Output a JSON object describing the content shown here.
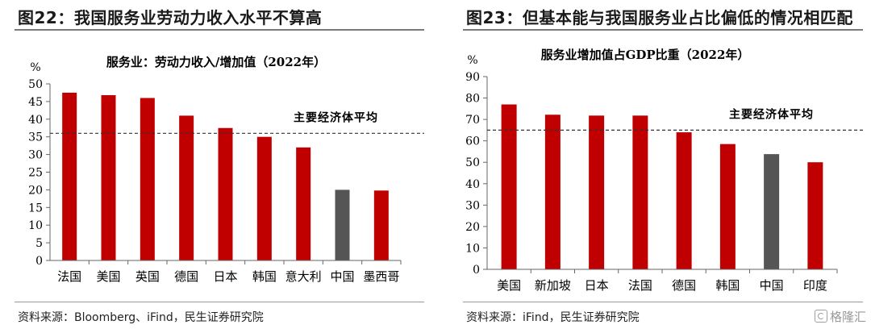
{
  "left": {
    "fig_title": "图22：我国服务业劳动力收入水平不算高",
    "source": "资料来源：Bloomberg、iFind，民生证券研究院",
    "chart_data": {
      "type": "bar",
      "title": "服务业：劳动力收入/增加值（2022年）",
      "unit_label": "%",
      "categories": [
        "法国",
        "美国",
        "英国",
        "德国",
        "日本",
        "韩国",
        "意大利",
        "中国",
        "墨西哥"
      ],
      "values": [
        47.5,
        46.8,
        46.0,
        41.0,
        37.5,
        35.0,
        32.0,
        20.0,
        19.8
      ],
      "ylim": [
        0,
        50
      ],
      "ytick_step": 5,
      "colors": [
        "#c00000",
        "#c00000",
        "#c00000",
        "#c00000",
        "#c00000",
        "#c00000",
        "#c00000",
        "#555555",
        "#c00000"
      ],
      "reference_line": {
        "value": 36,
        "label": "主要经济体平均"
      },
      "grid": false
    }
  },
  "right": {
    "fig_title": "图23：但基本能与我国服务业占比偏低的情况相匹配",
    "source": "资料来源：iFind，民生证券研究院",
    "watermark": "格隆汇",
    "chart_data": {
      "type": "bar",
      "title": "服务业增加值占GDP比重（2022年）",
      "unit_label": "%",
      "categories": [
        "美国",
        "新加坡",
        "日本",
        "法国",
        "德国",
        "韩国",
        "中国",
        "印度"
      ],
      "values": [
        77.0,
        72.2,
        71.8,
        71.8,
        64.0,
        58.5,
        53.8,
        50.0
      ],
      "ylim": [
        0,
        90
      ],
      "ytick_step": 10,
      "colors": [
        "#c00000",
        "#c00000",
        "#c00000",
        "#c00000",
        "#c00000",
        "#c00000",
        "#555555",
        "#c00000"
      ],
      "reference_line": {
        "value": 65,
        "label": "主要经济体平均"
      },
      "grid": false
    }
  }
}
